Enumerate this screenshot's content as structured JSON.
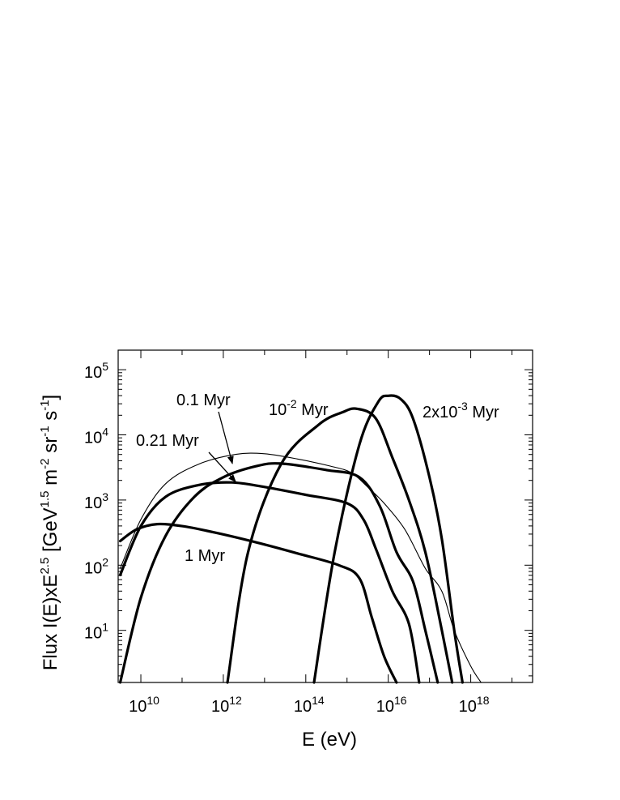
{
  "chart_data": {
    "type": "line",
    "title": "",
    "xlabel": "E (eV)",
    "ylabel": {
      "parts": [
        {
          "text": "Flux I(E)xE",
          "sup": false
        },
        {
          "text": "2.5",
          "sup": true
        },
        {
          "text": " [GeV",
          "sup": false
        },
        {
          "text": "1.5",
          "sup": true
        },
        {
          "text": " m",
          "sup": false
        },
        {
          "text": "-2",
          "sup": true
        },
        {
          "text": " sr",
          "sup": false
        },
        {
          "text": "-1",
          "sup": true
        },
        {
          "text": " s",
          "sup": false
        },
        {
          "text": "-1",
          "sup": true
        },
        {
          "text": "]",
          "sup": false
        }
      ]
    },
    "x_scale": "log",
    "y_scale": "log",
    "xlim_log10": [
      9.45,
      19.5
    ],
    "ylim_log10": [
      0.2,
      5.3
    ],
    "x_ticks": [
      {
        "base": "10",
        "exp": "10",
        "log10": 10
      },
      {
        "base": "10",
        "exp": "12",
        "log10": 12
      },
      {
        "base": "10",
        "exp": "14",
        "log10": 14
      },
      {
        "base": "10",
        "exp": "16",
        "log10": 16
      },
      {
        "base": "10",
        "exp": "18",
        "log10": 18
      }
    ],
    "y_ticks": [
      {
        "base": "10",
        "exp": "1",
        "log10": 1
      },
      {
        "base": "10",
        "exp": "2",
        "log10": 2
      },
      {
        "base": "10",
        "exp": "3",
        "log10": 3
      },
      {
        "base": "10",
        "exp": "4",
        "log10": 4
      },
      {
        "base": "10",
        "exp": "5",
        "log10": 5
      }
    ],
    "grid": false,
    "legend": "none",
    "series": [
      {
        "name": "2x10^-3 Myr",
        "line": "thick",
        "points_log10": [
          [
            14.2,
            0.2
          ],
          [
            14.7,
            2.2
          ],
          [
            15.3,
            3.85
          ],
          [
            15.75,
            4.5
          ],
          [
            16.0,
            4.6
          ],
          [
            16.3,
            4.55
          ],
          [
            16.6,
            4.25
          ],
          [
            17.0,
            3.35
          ],
          [
            17.3,
            2.4
          ],
          [
            17.6,
            1.0
          ],
          [
            17.8,
            0.2
          ]
        ]
      },
      {
        "name": "10^-2 Myr",
        "line": "thick",
        "points_log10": [
          [
            12.1,
            0.2
          ],
          [
            12.6,
            2.2
          ],
          [
            13.4,
            3.55
          ],
          [
            14.3,
            4.15
          ],
          [
            14.9,
            4.35
          ],
          [
            15.25,
            4.4
          ],
          [
            15.7,
            4.25
          ],
          [
            16.1,
            3.65
          ],
          [
            16.5,
            3.0
          ],
          [
            16.9,
            2.2
          ],
          [
            17.3,
            1.0
          ],
          [
            17.55,
            0.2
          ]
        ]
      },
      {
        "name": "0.1 Myr",
        "line": "thick",
        "points_log10": [
          [
            9.5,
            0.2
          ],
          [
            10.0,
            1.5
          ],
          [
            10.6,
            2.45
          ],
          [
            11.3,
            3.05
          ],
          [
            12.0,
            3.35
          ],
          [
            12.8,
            3.52
          ],
          [
            13.4,
            3.56
          ],
          [
            14.5,
            3.46
          ],
          [
            15.3,
            3.35
          ],
          [
            15.8,
            2.9
          ],
          [
            16.2,
            2.2
          ],
          [
            16.6,
            1.75
          ],
          [
            16.9,
            1.0
          ],
          [
            17.2,
            0.2
          ]
        ]
      },
      {
        "name": "0.21 Myr",
        "line": "thick",
        "points_log10": [
          [
            9.5,
            1.85
          ],
          [
            10.0,
            2.6
          ],
          [
            10.6,
            3.05
          ],
          [
            11.4,
            3.23
          ],
          [
            12.2,
            3.27
          ],
          [
            13.0,
            3.2
          ],
          [
            14.0,
            3.08
          ],
          [
            15.0,
            2.95
          ],
          [
            15.4,
            2.7
          ],
          [
            15.7,
            2.25
          ],
          [
            16.1,
            1.6
          ],
          [
            16.5,
            1.1
          ],
          [
            16.75,
            0.2
          ]
        ]
      },
      {
        "name": "1 Myr",
        "line": "thick",
        "points_log10": [
          [
            9.5,
            2.37
          ],
          [
            9.9,
            2.55
          ],
          [
            10.4,
            2.63
          ],
          [
            11.0,
            2.6
          ],
          [
            11.8,
            2.5
          ],
          [
            12.8,
            2.35
          ],
          [
            13.8,
            2.18
          ],
          [
            14.8,
            2.0
          ],
          [
            15.3,
            1.8
          ],
          [
            15.6,
            1.2
          ],
          [
            15.9,
            0.6
          ],
          [
            16.2,
            0.2
          ]
        ]
      },
      {
        "name": "",
        "line": "thin",
        "points_log10": [
          [
            9.5,
            1.95
          ],
          [
            10.0,
            2.7
          ],
          [
            10.6,
            3.25
          ],
          [
            11.4,
            3.55
          ],
          [
            12.3,
            3.7
          ],
          [
            13.0,
            3.71
          ],
          [
            13.8,
            3.63
          ],
          [
            14.6,
            3.52
          ],
          [
            15.1,
            3.42
          ],
          [
            15.5,
            3.2
          ],
          [
            15.9,
            2.95
          ],
          [
            16.4,
            2.55
          ],
          [
            16.9,
            1.95
          ],
          [
            17.3,
            1.6
          ],
          [
            17.6,
            1.0
          ],
          [
            18.0,
            0.45
          ],
          [
            18.25,
            0.2
          ]
        ]
      }
    ],
    "annotations": [
      {
        "label": "0.1 Myr",
        "parts": [
          {
            "text": "0.1 Myr",
            "sup": false
          }
        ],
        "arrow_to_log10": [
          12.22,
          3.56
        ]
      },
      {
        "label": "0.21 Myr",
        "parts": [
          {
            "text": "0.21 Myr",
            "sup": false
          }
        ],
        "arrow_to_log10": [
          12.3,
          3.28
        ]
      },
      {
        "label": "10^-2 Myr",
        "parts": [
          {
            "text": "10",
            "sup": false
          },
          {
            "text": "-2",
            "sup": true
          },
          {
            "text": " Myr",
            "sup": false
          }
        ]
      },
      {
        "label": "2x10^-3 Myr",
        "parts": [
          {
            "text": "2x10",
            "sup": false
          },
          {
            "text": "-3",
            "sup": true
          },
          {
            "text": " Myr",
            "sup": false
          }
        ]
      },
      {
        "label": "1 Myr",
        "parts": [
          {
            "text": "1 Myr",
            "sup": false
          }
        ]
      }
    ]
  }
}
